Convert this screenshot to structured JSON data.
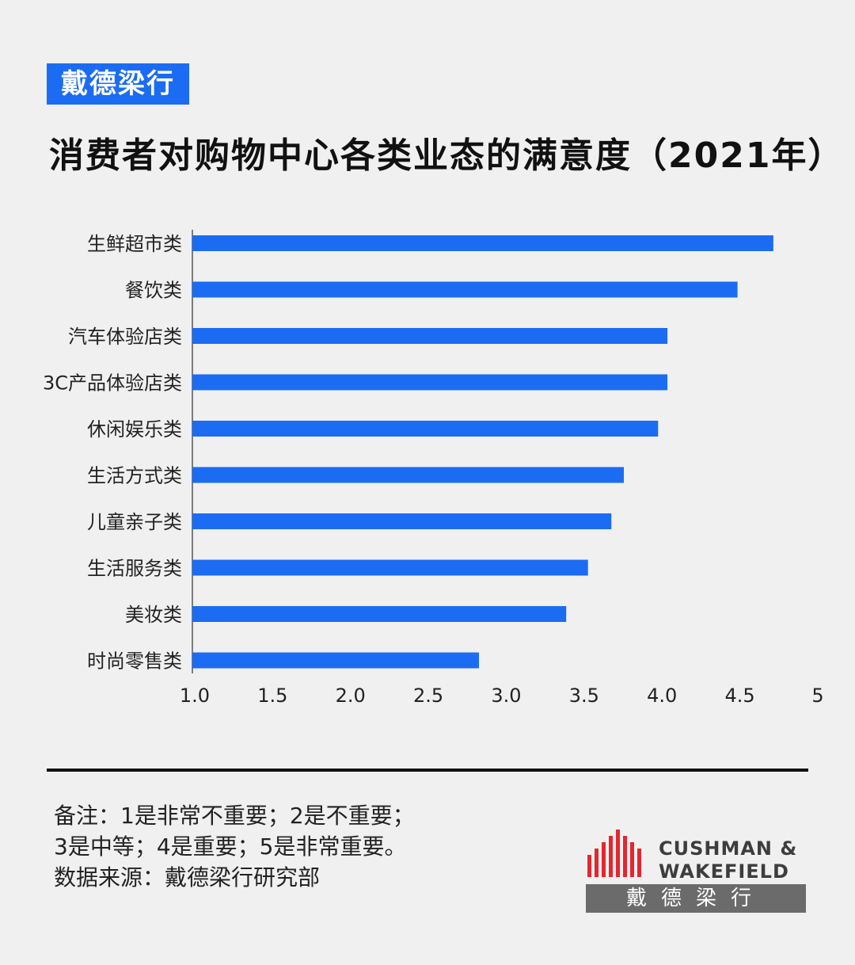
{
  "brand_tag": "戴德梁行",
  "title": "消费者对购物中心各类业态的满意度（2021年）",
  "chart_data": {
    "type": "bar",
    "orientation": "horizontal",
    "title": "消费者对购物中心各类业态的满意度（2021年）",
    "categories": [
      "生鲜超市类",
      "餐饮类",
      "汽车体验店类",
      "3C产品体验店类",
      "休闲娱乐类",
      "生活方式类",
      "儿童亲子类",
      "生活服务类",
      "美妆类",
      "时尚零售类"
    ],
    "values": [
      4.73,
      4.5,
      4.05,
      4.05,
      3.99,
      3.77,
      3.69,
      3.54,
      3.4,
      2.84
    ],
    "xlim": [
      1,
      5
    ],
    "x_ticks": [
      "1.0",
      "1.5",
      "2.0",
      "2.5",
      "3.0",
      "3.5",
      "4.0",
      "4.5",
      "5"
    ],
    "xlabel": "",
    "ylabel": "",
    "bar_color": "#1b6cf2",
    "grid": false,
    "legend": "none"
  },
  "notes": {
    "line1": "备注：1是非常不重要；2是不重要；",
    "line2": "3是中等；4是重要；5是非常重要。",
    "line3": "数据来源：戴德梁行研究部"
  },
  "logo": {
    "line1": "CUSHMAN &",
    "line2": "WAKEFIELD",
    "cn": "戴德梁行",
    "mark_color": "#e4262f",
    "cn_bg": "#6b6b6b"
  }
}
